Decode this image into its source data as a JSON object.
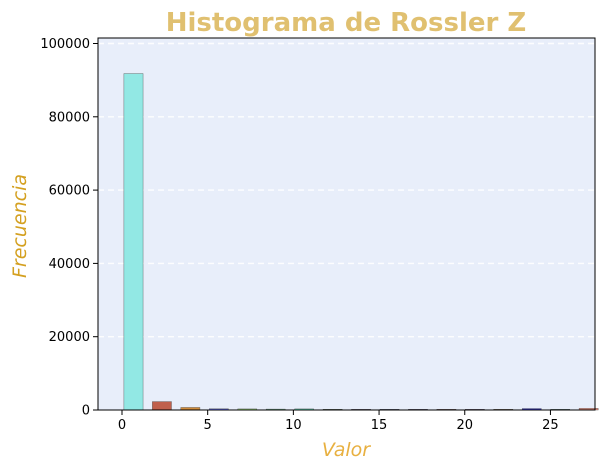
{
  "chart_data": {
    "type": "bar",
    "title": "Histograma de Rossler Z",
    "xlabel": "Valor",
    "ylabel": "Frecuencia",
    "xlim": [
      -1.4,
      27.6
    ],
    "ylim": [
      0,
      101500
    ],
    "grid": "horizontal dashed",
    "background": "#e8eefa",
    "title_color": "#e0c070",
    "xlabel_color": "#e8b040",
    "ylabel_color": "#d4a020",
    "bin_width": 1.33,
    "bars": [
      {
        "x": 0.67,
        "value": 91800,
        "color": "#92e8e4"
      },
      {
        "x": 2.33,
        "value": 2300,
        "color": "#c0604c"
      },
      {
        "x": 3.99,
        "value": 700,
        "color": "#d08c3c"
      },
      {
        "x": 5.65,
        "value": 350,
        "color": "#6670f0"
      },
      {
        "x": 7.31,
        "value": 300,
        "color": "#a8f080"
      },
      {
        "x": 8.97,
        "value": 250,
        "color": "#70e8a0"
      },
      {
        "x": 10.63,
        "value": 300,
        "color": "#66f0c8"
      },
      {
        "x": 12.29,
        "value": 120,
        "color": "#4c8c4c"
      },
      {
        "x": 13.95,
        "value": 100,
        "color": "#8c6cd0"
      },
      {
        "x": 15.61,
        "value": 90,
        "color": "#506cd8"
      },
      {
        "x": 17.27,
        "value": 100,
        "color": "#6c54c8"
      },
      {
        "x": 18.93,
        "value": 110,
        "color": "#e06c70"
      },
      {
        "x": 20.59,
        "value": 100,
        "color": "#9c4cc0"
      },
      {
        "x": 22.25,
        "value": 80,
        "color": "#e0a040"
      },
      {
        "x": 23.91,
        "value": 400,
        "color": "#3c3cc8"
      },
      {
        "x": 25.57,
        "value": 120,
        "color": "#48c8c8"
      },
      {
        "x": 27.23,
        "value": 450,
        "color": "#e08878"
      }
    ],
    "xticks": [
      0,
      5,
      10,
      15,
      20,
      25
    ],
    "xtick_labels": [
      "0",
      "5",
      "10",
      "15",
      "20",
      "25"
    ],
    "yticks": [
      0,
      20000,
      40000,
      60000,
      80000,
      100000
    ],
    "ytick_labels": [
      "0",
      "20000",
      "40000",
      "60000",
      "80000",
      "100000"
    ]
  }
}
